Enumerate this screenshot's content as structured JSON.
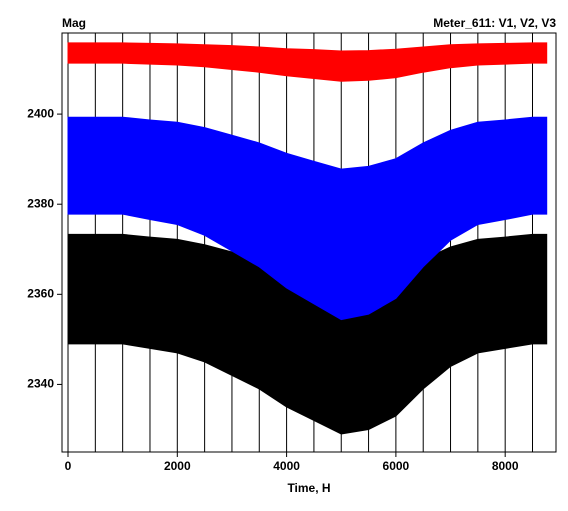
{
  "chart_data": {
    "type": "band",
    "title": "Meter_611:  V1,  V2,  V3",
    "y_label": "Mag",
    "x_label": "Time, H",
    "x": [
      0,
      500,
      1000,
      1500,
      2000,
      2500,
      3000,
      3500,
      4000,
      4500,
      5000,
      5500,
      6000,
      6500,
      7000,
      7500,
      8000,
      8500,
      8760
    ],
    "series": [
      {
        "color": "#000000",
        "upper": [
          2373.3,
          2373.3,
          2373.3,
          2372.7,
          2372.2,
          2371,
          2369.4,
          2367.7,
          2365.4,
          2363.7,
          2362,
          2362.6,
          2364.3,
          2367.7,
          2370.5,
          2372.2,
          2372.7,
          2373.3,
          2373.3
        ],
        "lower": [
          2349,
          2349,
          2349,
          2348,
          2347,
          2345,
          2342,
          2339,
          2335,
          2332,
          2329,
          2330,
          2333,
          2339,
          2344,
          2347,
          2348,
          2349,
          2349
        ]
      },
      {
        "color": "#0000ff",
        "upper": [
          2399.3,
          2399.3,
          2399.3,
          2398.7,
          2398.2,
          2397,
          2395.3,
          2393.6,
          2391.3,
          2389.5,
          2387.8,
          2388.4,
          2390.1,
          2393.6,
          2396.4,
          2398.2,
          2398.7,
          2399.3,
          2399.3
        ],
        "lower": [
          2377.8,
          2377.8,
          2377.8,
          2376.6,
          2375.5,
          2373.1,
          2369.6,
          2366.1,
          2361.4,
          2357.9,
          2354.4,
          2355.6,
          2359.1,
          2366.1,
          2372,
          2375.5,
          2376.6,
          2377.8,
          2377.8
        ]
      },
      {
        "color": "#ff0000",
        "upper": [
          2415.8,
          2415.8,
          2415.8,
          2415.7,
          2415.6,
          2415.4,
          2415.2,
          2414.9,
          2414.5,
          2414.3,
          2414,
          2414.1,
          2414.4,
          2414.9,
          2415.4,
          2415.6,
          2415.7,
          2415.8,
          2415.8
        ],
        "lower": [
          2411.3,
          2411.3,
          2411.3,
          2411.1,
          2410.9,
          2410.5,
          2409.9,
          2409.3,
          2408.5,
          2407.9,
          2407.3,
          2407.5,
          2408.1,
          2409.3,
          2410.3,
          2410.9,
          2411.1,
          2411.3,
          2411.3
        ]
      }
    ],
    "xlim": [
      -110,
      8930
    ],
    "ylim": [
      2325,
      2418
    ],
    "xticks": [
      0,
      2000,
      4000,
      6000,
      8000
    ],
    "yticks": [
      2340,
      2360,
      2380,
      2400
    ],
    "x_grid": [
      0,
      500,
      1000,
      1500,
      2000,
      2500,
      3000,
      3500,
      4000,
      4500,
      5000,
      5500,
      6000,
      6500,
      7000,
      7500,
      8000,
      8500
    ]
  }
}
